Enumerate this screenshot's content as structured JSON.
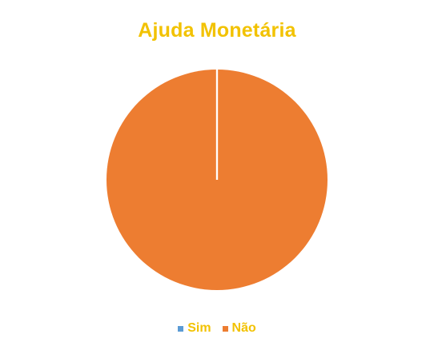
{
  "chart_data": {
    "type": "pie",
    "title": "Ajuda Monetária",
    "categories": [
      "Sim",
      "Não"
    ],
    "values": [
      0,
      100
    ],
    "colors": [
      "#5B9BD5",
      "#ED7D31"
    ],
    "legend_position": "bottom",
    "title_color": "#F2C200",
    "legend_text_color": "#F2C200"
  }
}
